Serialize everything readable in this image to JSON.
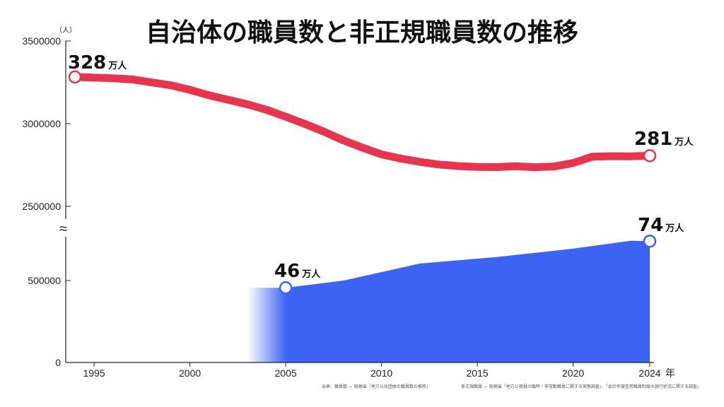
{
  "chart_data": {
    "type": "line",
    "title": "自治体の職員数と非正規職員数の推移",
    "ylabel": "（人）",
    "xlabel_unit": "年",
    "x_ticks": [
      "1995",
      "2000",
      "2005",
      "2010",
      "2015",
      "2020",
      "2024"
    ],
    "upper_axis": {
      "ylim": [
        2500000,
        3500000
      ],
      "ticks": [
        "3500000",
        "3000000",
        "2500000"
      ]
    },
    "lower_axis": {
      "ylim": [
        0,
        800000
      ],
      "ticks": [
        "500000",
        "0"
      ]
    },
    "axis_break_symbol": "≈",
    "series": [
      {
        "name": "職員数",
        "color": "#e8344e",
        "axis": "upper",
        "x": [
          1994,
          1995,
          1996,
          1997,
          1998,
          1999,
          2000,
          2001,
          2002,
          2003,
          2004,
          2005,
          2006,
          2007,
          2008,
          2009,
          2010,
          2011,
          2012,
          2013,
          2014,
          2015,
          2016,
          2017,
          2018,
          2019,
          2020,
          2021,
          2022,
          2023,
          2024
        ],
        "values": [
          3282492,
          3278332,
          3274481,
          3267118,
          3249494,
          3232158,
          3204297,
          3171532,
          3144323,
          3117004,
          3083597,
          3042122,
          2998402,
          2951296,
          2899378,
          2855106,
          2813875,
          2788989,
          2768913,
          2752484,
          2743654,
          2738337,
          2737263,
          2742596,
          2736860,
          2740653,
          2762020,
          2800384,
          2803664,
          2802214,
          2806255
        ],
        "labels": [
          {
            "x": 1994,
            "value": "328",
            "unit": "万人"
          },
          {
            "x": 2024,
            "value": "281",
            "unit": "万人"
          }
        ]
      },
      {
        "name": "非正規職員数",
        "color": "#3d63f5",
        "axis": "lower",
        "type": "area",
        "x": [
          2005,
          2008,
          2012,
          2016,
          2020,
          2023,
          2024
        ],
        "values": [
          455840,
          499302,
          603582,
          643131,
          694473,
          742725,
          740000
        ],
        "fade_start_x": 2003,
        "labels": [
          {
            "x": 2005,
            "value": "46",
            "unit": "万人"
          },
          {
            "x": 2024,
            "value": "74",
            "unit": "万人"
          }
        ]
      }
    ],
    "sources": [
      "出典：職員数 — 総務省「地方公共団体の職員数の推移」",
      "非正規職員 — 総務省「地方公務員の臨時・非常勤職員に関する実態調査」、「会計年度任用職員制度の施行状況に関する調査」"
    ]
  }
}
